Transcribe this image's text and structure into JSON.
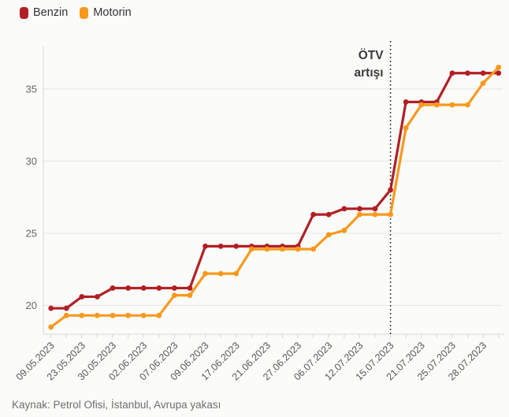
{
  "legend": {
    "items": [
      {
        "label": "Benzin",
        "color": "#b01f24"
      },
      {
        "label": "Motorin",
        "color": "#f8991d"
      }
    ]
  },
  "annotation": {
    "line1": "ÖTV",
    "line2": "artışı",
    "at_index": 22,
    "at_tick_label": "15.07.2023"
  },
  "source": "Kaynak: Petrol Ofisi, İstanbul, Avrupa yakası",
  "colors": {
    "benzin": "#b01f24",
    "motorin": "#f8991d",
    "grid": "#e5e5e3",
    "axis": "#d8d8d6",
    "tick_label": "#666666",
    "annotation_text": "#3a3a3a",
    "vline": "#333333",
    "background": "#fbfbfa"
  },
  "chart_data": {
    "type": "line",
    "title": "",
    "xlabel": "",
    "ylabel": "",
    "categories": [
      "09.05.2023",
      "",
      "23.05.2023",
      "",
      "30.05.2023",
      "",
      "02.06.2023",
      "",
      "07.06.2023",
      "",
      "09.06.2023",
      "",
      "17.06.2023",
      "",
      "21.06.2023",
      "",
      "27.06.2023",
      "",
      "06.07.2023",
      "",
      "12.07.2023",
      "",
      "15.07.2023",
      "",
      "21.07.2023",
      "",
      "25.07.2023",
      "",
      "28.07.2023",
      ""
    ],
    "series": [
      {
        "name": "Benzin",
        "color": "#b01f24",
        "values": [
          19.8,
          19.8,
          20.6,
          20.6,
          21.2,
          21.2,
          21.2,
          21.2,
          21.2,
          21.2,
          24.1,
          24.1,
          24.1,
          24.1,
          24.1,
          24.1,
          24.1,
          26.3,
          26.3,
          26.7,
          26.7,
          26.7,
          28.0,
          34.1,
          34.1,
          34.1,
          36.1,
          36.1,
          36.1,
          36.1
        ]
      },
      {
        "name": "Motorin",
        "color": "#f8991d",
        "values": [
          18.5,
          19.3,
          19.3,
          19.3,
          19.3,
          19.3,
          19.3,
          19.3,
          20.7,
          20.7,
          22.2,
          22.2,
          22.2,
          23.9,
          23.9,
          23.9,
          23.9,
          23.9,
          24.9,
          25.2,
          26.3,
          26.3,
          26.3,
          32.3,
          33.9,
          33.9,
          33.9,
          33.9,
          35.4,
          36.5
        ]
      }
    ],
    "yticks": [
      20,
      25,
      30,
      35
    ],
    "ylim": [
      18,
      38
    ],
    "grid": "horizontal",
    "legend_position": "top-left",
    "vline": {
      "at_index": 22,
      "style": "dotted",
      "label": "ÖTV artışı"
    }
  }
}
